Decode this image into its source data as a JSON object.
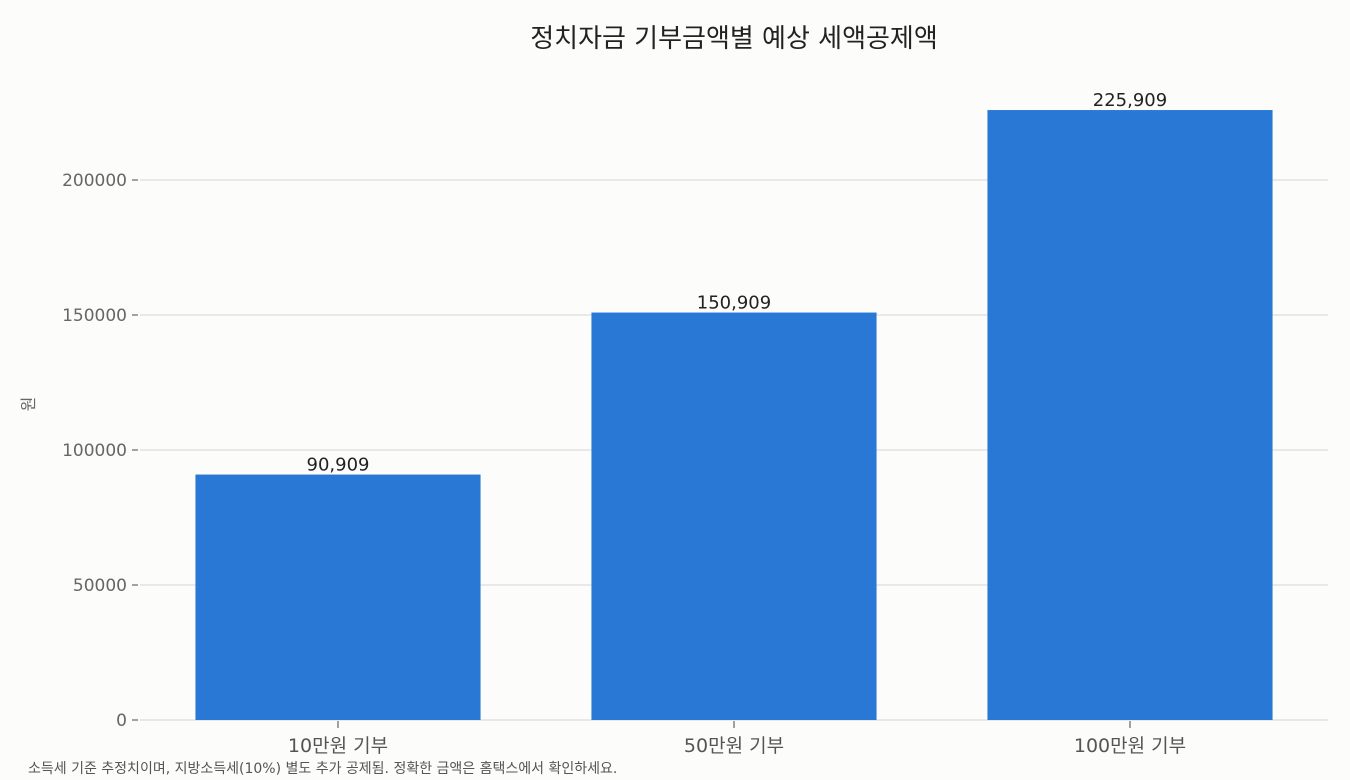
{
  "chart_data": {
    "type": "bar",
    "title": "정치자금 기부금액별 예상 세액공제액",
    "ylabel": "원",
    "xlabel": "",
    "categories": [
      "10만원 기부",
      "50만원 기부",
      "100만원 기부"
    ],
    "values": [
      90909,
      150909,
      225909
    ],
    "data_labels": [
      "90,909",
      "150,909",
      "225,909"
    ],
    "ylim": [
      0,
      232000
    ],
    "yticks": [
      0,
      50000,
      100000,
      150000,
      200000
    ],
    "ytick_labels": [
      "0",
      "50000",
      "100000",
      "150000",
      "200000"
    ],
    "grid": "horizontal",
    "legend": "none",
    "bar_color": "#2a78d6",
    "footnote": "소득세 기준 추정치이며, 지방소득세(10%) 별도 추가 공제됨. 정확한 금액은 홈택스에서 확인하세요."
  }
}
